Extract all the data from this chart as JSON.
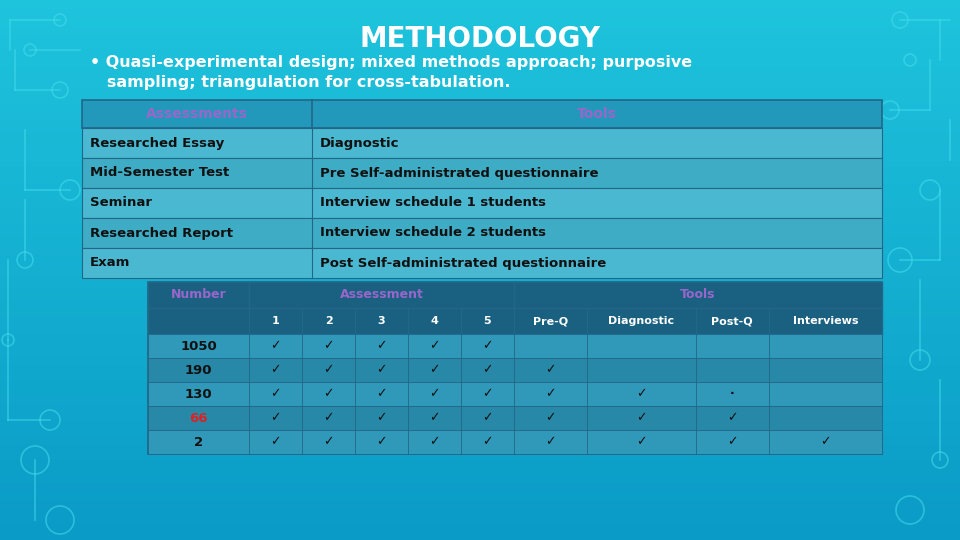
{
  "title": "METHODOLOGY",
  "bullet_line1": "• Quasi-experimental design; mixed methods approach; purposive",
  "bullet_line2": "   sampling; triangulation for cross-tabulation.",
  "bg_color": "#1ab8d8",
  "bg_gradient_top": "#22cce0",
  "bg_gradient_bot": "#0088bb",
  "table1_headers": [
    "Assessments",
    "Tools"
  ],
  "table1_rows": [
    [
      "Researched Essay",
      "Diagnostic"
    ],
    [
      "Mid-Semester Test",
      "Pre Self-administrated questionnaire"
    ],
    [
      "Seminar",
      "Interview schedule 1 students"
    ],
    [
      "Researched Report",
      "Interview schedule 2 students"
    ],
    [
      "Exam",
      "Post Self-administrated questionnaire"
    ]
  ],
  "table2_rows": [
    [
      "1050",
      "✓",
      "✓",
      "✓",
      "✓",
      "✓",
      "",
      "",
      "",
      ""
    ],
    [
      "190",
      "✓",
      "✓",
      "✓",
      "✓",
      "✓",
      "✓",
      "",
      "",
      ""
    ],
    [
      "130",
      "✓",
      "✓",
      "✓",
      "✓",
      "✓",
      "✓",
      "✓",
      "·",
      ""
    ],
    [
      "66",
      "✓",
      "✓",
      "✓",
      "✓",
      "✓",
      "✓",
      "✓",
      "✓",
      ""
    ],
    [
      "2",
      "✓",
      "✓",
      "✓",
      "✓",
      "✓",
      "✓",
      "✓",
      "✓",
      "✓"
    ]
  ],
  "purple": "#9966cc",
  "red66": "#dd2222",
  "white": "#ffffff",
  "black": "#111111",
  "table_cell_light": "#4ab8d0",
  "table_cell_alt": "#3aa8c0",
  "table_header_bg": "#2288aa",
  "table2_cell_light": "#3498b8",
  "table2_cell_alt": "#2888a8",
  "table2_header_bg": "#1a6888",
  "border_color": "#226688"
}
